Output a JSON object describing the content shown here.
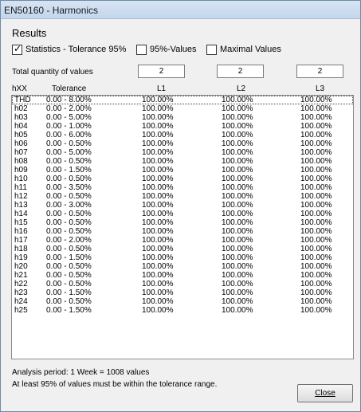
{
  "window": {
    "title": "EN50160 - Harmonics"
  },
  "results": {
    "title": "Results",
    "checkboxes": [
      {
        "label": "Statistics - Tolerance 95%",
        "checked": true,
        "mark": "✓"
      },
      {
        "label": "95%-Values",
        "checked": false,
        "mark": ""
      },
      {
        "label": "Maximal Values",
        "checked": false,
        "mark": ""
      }
    ],
    "quantity_label": "Total quantity of values",
    "quantities": [
      "2",
      "2",
      "2"
    ]
  },
  "table": {
    "headers": [
      "hXX",
      "Tolerance",
      "L1",
      "L2",
      "L3"
    ],
    "rows": [
      [
        "THD",
        "0.00 - 8.00%",
        "100.00%",
        "100.00%",
        "100.00%"
      ],
      [
        "h02",
        "0.00 - 2.00%",
        "100.00%",
        "100.00%",
        "100.00%"
      ],
      [
        "h03",
        "0.00 - 5.00%",
        "100.00%",
        "100.00%",
        "100.00%"
      ],
      [
        "h04",
        "0.00 - 1.00%",
        "100.00%",
        "100.00%",
        "100.00%"
      ],
      [
        "h05",
        "0.00 - 6.00%",
        "100.00%",
        "100.00%",
        "100.00%"
      ],
      [
        "h06",
        "0.00 - 0.50%",
        "100.00%",
        "100.00%",
        "100.00%"
      ],
      [
        "h07",
        "0.00 - 5.00%",
        "100.00%",
        "100.00%",
        "100.00%"
      ],
      [
        "h08",
        "0.00 - 0.50%",
        "100.00%",
        "100.00%",
        "100.00%"
      ],
      [
        "h09",
        "0.00 - 1.50%",
        "100.00%",
        "100.00%",
        "100.00%"
      ],
      [
        "h10",
        "0.00 - 0.50%",
        "100.00%",
        "100.00%",
        "100.00%"
      ],
      [
        "h11",
        "0.00 - 3.50%",
        "100.00%",
        "100.00%",
        "100.00%"
      ],
      [
        "h12",
        "0.00 - 0.50%",
        "100.00%",
        "100.00%",
        "100.00%"
      ],
      [
        "h13",
        "0.00 - 3.00%",
        "100.00%",
        "100.00%",
        "100.00%"
      ],
      [
        "h14",
        "0.00 - 0.50%",
        "100.00%",
        "100.00%",
        "100.00%"
      ],
      [
        "h15",
        "0.00 - 0.50%",
        "100.00%",
        "100.00%",
        "100.00%"
      ],
      [
        "h16",
        "0.00 - 0.50%",
        "100.00%",
        "100.00%",
        "100.00%"
      ],
      [
        "h17",
        "0.00 - 2.00%",
        "100.00%",
        "100.00%",
        "100.00%"
      ],
      [
        "h18",
        "0.00 - 0.50%",
        "100.00%",
        "100.00%",
        "100.00%"
      ],
      [
        "h19",
        "0.00 - 1.50%",
        "100.00%",
        "100.00%",
        "100.00%"
      ],
      [
        "h20",
        "0.00 - 0.50%",
        "100.00%",
        "100.00%",
        "100.00%"
      ],
      [
        "h21",
        "0.00 - 0.50%",
        "100.00%",
        "100.00%",
        "100.00%"
      ],
      [
        "h22",
        "0.00 - 0.50%",
        "100.00%",
        "100.00%",
        "100.00%"
      ],
      [
        "h23",
        "0.00 - 1.50%",
        "100.00%",
        "100.00%",
        "100.00%"
      ],
      [
        "h24",
        "0.00 - 0.50%",
        "100.00%",
        "100.00%",
        "100.00%"
      ],
      [
        "h25",
        "0.00 - 1.50%",
        "100.00%",
        "100.00%",
        "100.00%"
      ]
    ]
  },
  "footer": {
    "analysis_period": "Analysis period: 1 Week = 1008 values",
    "requirement": "At least 95% of values must be within the tolerance range.",
    "close_label": "Close"
  }
}
